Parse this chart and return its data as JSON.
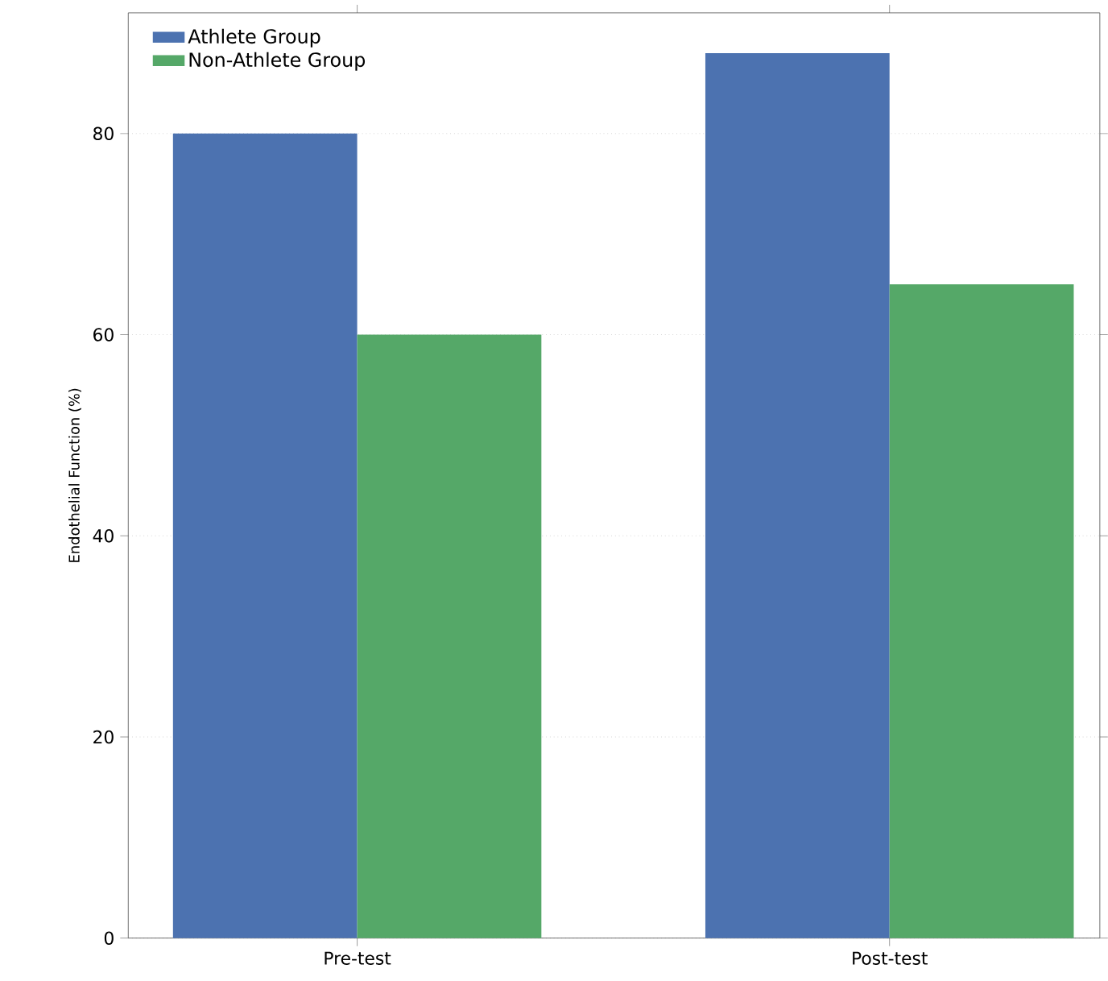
{
  "chart_data": {
    "type": "bar",
    "ylabel": "Endothelial Function (%)",
    "categories": [
      "Pre-test",
      "Post-test"
    ],
    "series": [
      {
        "name": "Athlete Group",
        "color": "#4c72b0",
        "values": [
          80,
          88
        ]
      },
      {
        "name": "Non-Athlete Group",
        "color": "#55a868",
        "values": [
          60,
          65
        ]
      }
    ],
    "ylim": [
      0,
      92
    ],
    "yticks": [
      0,
      20,
      40,
      60,
      80
    ],
    "grid": "y",
    "legend": "top left"
  }
}
